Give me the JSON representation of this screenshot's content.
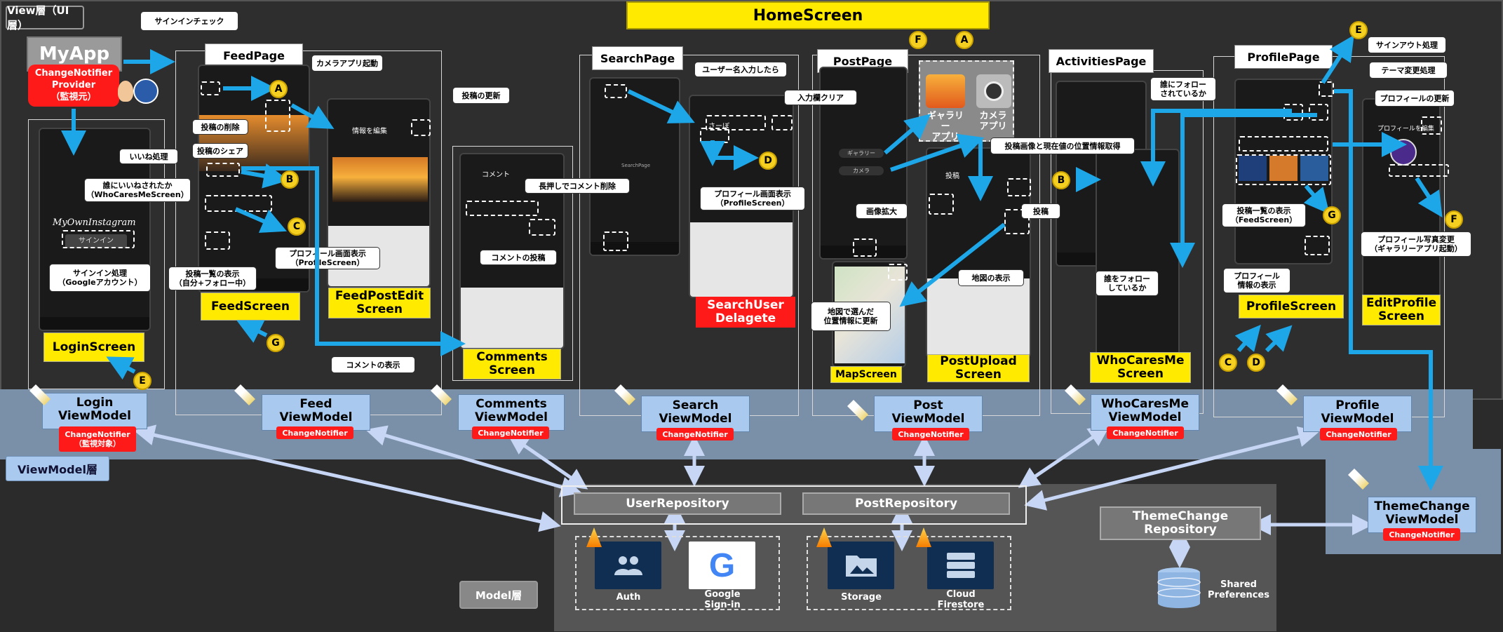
{
  "layers": {
    "view": "View層（UI層）",
    "viewmodel": "ViewModel層",
    "model": "Model層"
  },
  "home_screen": "HomeScreen",
  "myapp": {
    "title": "MyApp",
    "provider": "ChangeNotifier\nProvider\n（監視元）",
    "signin_check": "サインインチェック"
  },
  "pages": {
    "feed": "FeedPage",
    "search": "SearchPage",
    "post": "PostPage",
    "activities": "ActivitiesPage",
    "profile": "ProfilePage"
  },
  "screens": {
    "login": "LoginScreen",
    "feed": "FeedScreen",
    "feed_post_edit": "FeedPostEdit\nScreen",
    "comments": "Comments\nScreen",
    "search_delegate": "SearchUser\nDelagete",
    "map": "MapScreen",
    "post_upload": "PostUpload\nScreen",
    "who_cares_me": "WhoCaresMe\nScreen",
    "profile": "ProfileScreen",
    "edit_profile": "EditProfile\nScreen"
  },
  "apps": {
    "gallery": "ギャラリー\nアプリ",
    "camera": "カメラ\nアプリ"
  },
  "notes": {
    "camera_launch": "カメラアプリ起動",
    "post_delete": "投稿の削除",
    "post_share": "投稿のシェア",
    "like": "いいね処理",
    "who_liked": "誰にいいねされたか\n（WhoCaresMeScreen）",
    "profile_show": "プロフィール画面表示\n（ProfileScreen）",
    "post_list": "投稿一覧の表示\n（自分+フォロー中）",
    "signin": "サインイン処理\n（Googleアカウント）",
    "post_update": "投稿の更新",
    "long_press_delete": "長押しでコメント削除",
    "comment_post": "コメントの投稿",
    "comment_show": "コメントの表示",
    "username_input": "ユーザー名入力したら",
    "clear_input": "入力欄クリア",
    "profile_show2": "プロフィール画面表示\n（ProfileScreen）",
    "get_image_location": "投稿画像と現在値の位置情報取得",
    "zoom": "画像拡大",
    "post": "投稿",
    "map_show": "地図の表示",
    "map_update": "地図で選んだ\n位置情報に更新",
    "followed_by": "誰にフォロー\nされているか",
    "following": "誰をフォロー\nしているか",
    "post_list2": "投稿一覧の表示\n（FeedScreen）",
    "profile_info": "プロフィール\n情報の表示",
    "signout": "サインアウト処理",
    "theme_change": "テーマ変更処理",
    "profile_update": "プロフィールの更新",
    "profile_photo": "プロフィール写真変更\n（ギャラリーアプリ起動）"
  },
  "viewmodels": {
    "login": "Login\nViewModel",
    "feed": "Feed\nViewModel",
    "comments": "Comments\nViewModel",
    "search": "Search\nViewModel",
    "post": "Post\nViewModel",
    "who_cares_me": "WhoCaresMe\nViewModel",
    "profile": "Profile\nViewModel",
    "theme_change": "ThemeChange\nViewModel"
  },
  "change_notifier": "ChangeNotifier",
  "change_notifier_watched": "ChangeNotifier\n（監視対象）",
  "repositories": {
    "user": "UserRepository",
    "post": "PostRepository",
    "theme": "ThemeChange\nRepository"
  },
  "services": {
    "auth": "Auth",
    "google": "Google\nSign-in",
    "storage": "Storage",
    "firestore": "Cloud\nFirestore",
    "prefs": "Shared\nPreferences"
  },
  "markers": {
    "a": "A",
    "b": "B",
    "c": "C",
    "d": "D",
    "e": "E",
    "f": "F",
    "g": "G"
  },
  "phone_text": {
    "logo": "MyOwnInstagram",
    "signin_btn": "サインイン",
    "edit_title": "情報を編集",
    "comment_title": "コメント",
    "search_text": "さーぼ",
    "search_label": "SearchPage",
    "post_title": "投稿",
    "profile_edit_title": "プロフィールを編集",
    "gallery_btn": "ギャラリー",
    "camera_btn": "カメラ"
  },
  "colors": {
    "arrow": "#1ea7e8",
    "highlight": "#ffea00",
    "notifier": "#ff1a1a",
    "vm": "#a9c9ef"
  }
}
